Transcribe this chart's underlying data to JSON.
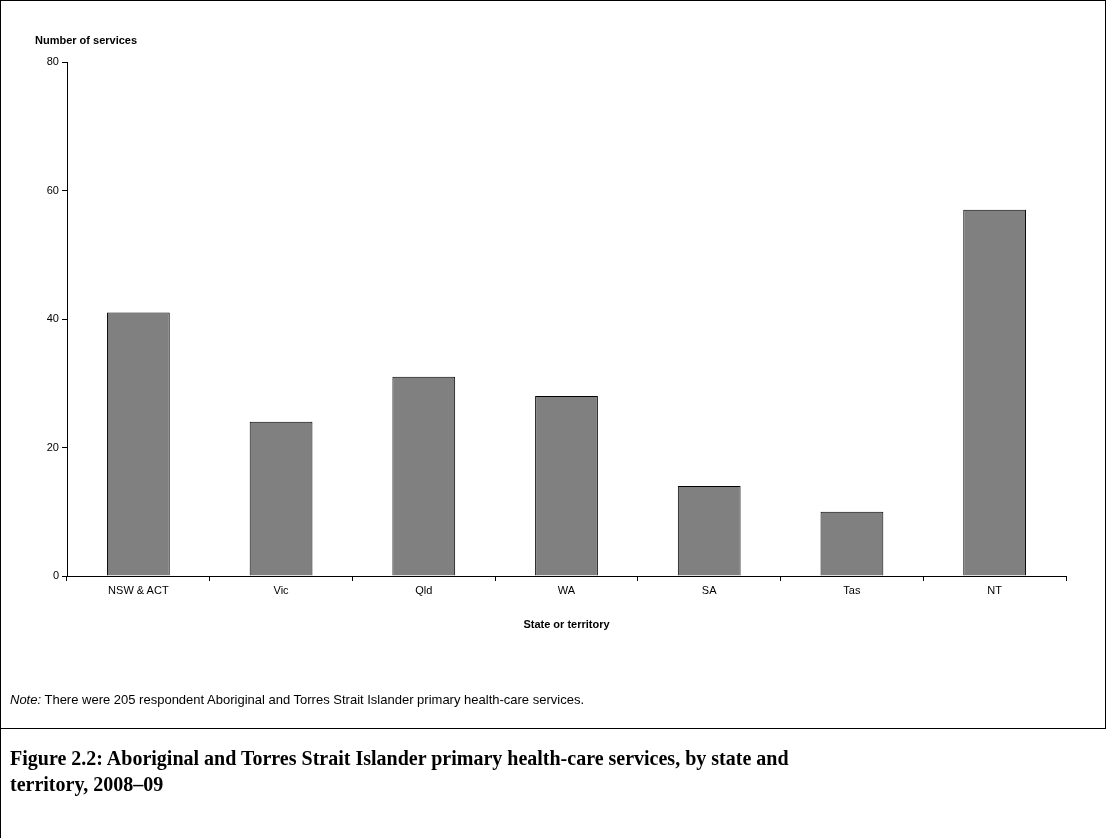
{
  "chart_data": {
    "type": "bar",
    "title": "Figure 2.2: Aboriginal and Torres Strait Islander primary health-care services, by state and territory, 2008–09",
    "xlabel": "State or territory",
    "ylabel": "Number of services",
    "categories": [
      "NSW & ACT",
      "Vic",
      "Qld",
      "WA",
      "SA",
      "Tas",
      "NT"
    ],
    "values": [
      41,
      24,
      31,
      28,
      14,
      10,
      57
    ],
    "color": "#808080",
    "ylim": [
      0,
      80
    ],
    "yticks": [
      0,
      20,
      40,
      60,
      80
    ],
    "grid": false,
    "legend": false,
    "annotations": [
      "Note: There were 205 respondent Aboriginal and Torres Strait Islander primary health-care services."
    ]
  }
}
